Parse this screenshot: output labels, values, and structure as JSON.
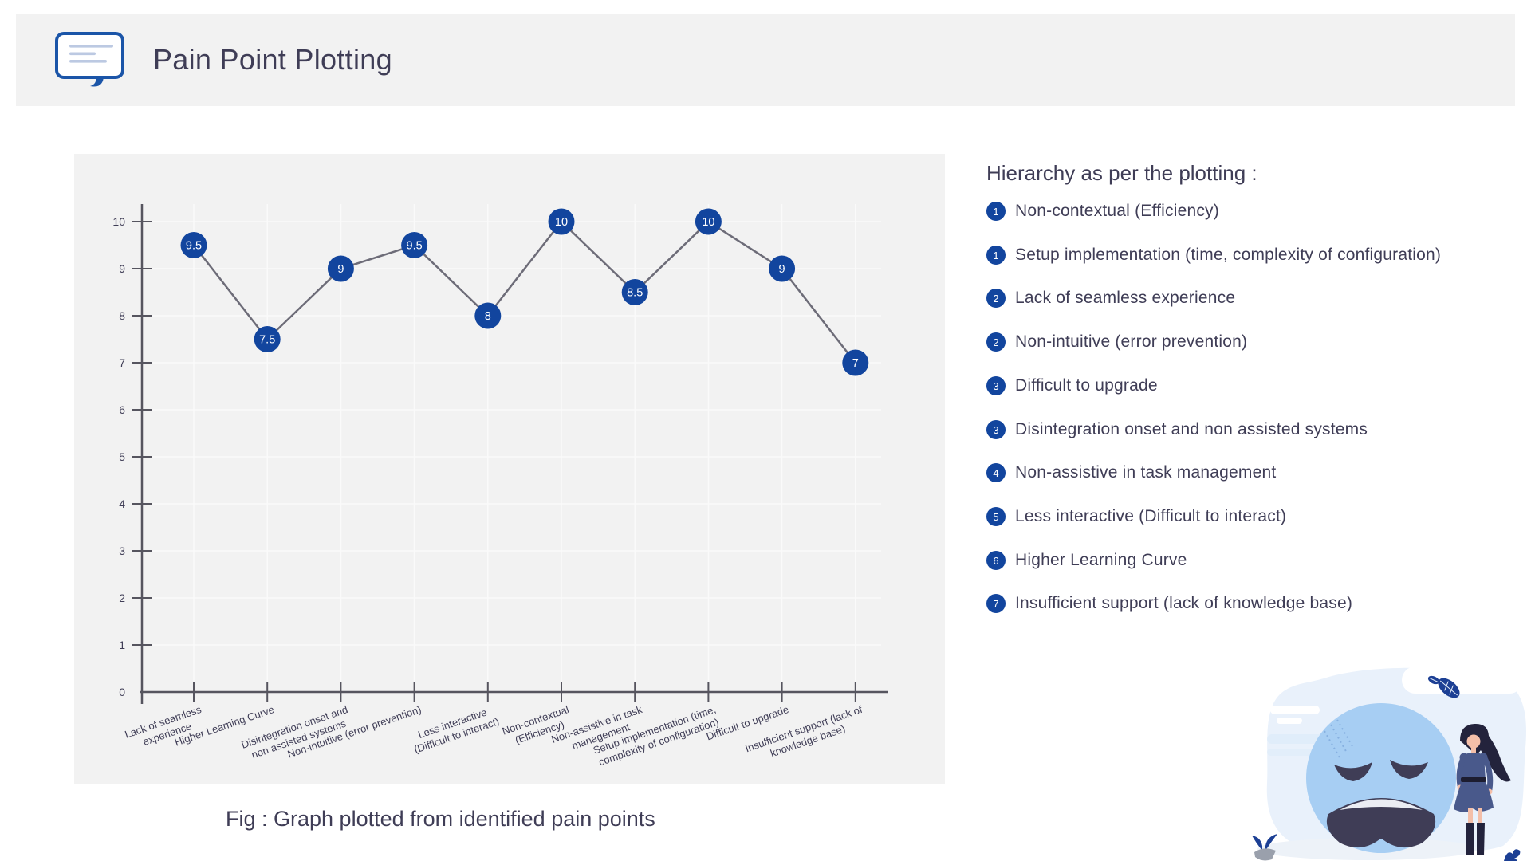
{
  "header": {
    "title": "Pain Point Plotting",
    "icon": "speech-bubble-icon"
  },
  "caption": "Fig : Graph plotted from identified pain points",
  "hierarchy": {
    "title": "Hierarchy as per the plotting :",
    "items": [
      {
        "rank": "1",
        "label": "Non-contextual (Efficiency)"
      },
      {
        "rank": "1",
        "label": "Setup implementation (time, complexity of configuration)"
      },
      {
        "rank": "2",
        "label": "Lack of seamless experience"
      },
      {
        "rank": "2",
        "label": "Non-intuitive (error prevention)"
      },
      {
        "rank": "3",
        "label": "Difficult to upgrade"
      },
      {
        "rank": "3",
        "label": "Disintegration onset and non assisted systems"
      },
      {
        "rank": "4",
        "label": "Non-assistive in task management"
      },
      {
        "rank": "5",
        "label": "Less interactive (Difficult to interact)"
      },
      {
        "rank": "6",
        "label": "Higher Learning Curve"
      },
      {
        "rank": "7",
        "label": "Insufficient support (lack of knowledge base)"
      }
    ]
  },
  "chart_data": {
    "type": "line",
    "title": "",
    "xlabel": "",
    "ylabel": "",
    "categories": [
      "Lack of seamless experience",
      "Higher Learning Curve",
      "Disintegration onset and non assisted systems",
      "Non-intuitive (error prevention)",
      "Less interactive (Difficult to interact)",
      "Non-contextual (Efficiency)",
      "Non-assistive in task management",
      "Setup implementation (time, complexity of configuration)",
      "Difficult to upgrade",
      "Insufficient support (lack of knowledge base)"
    ],
    "category_lines": [
      [
        "Lack of seamless",
        "experience"
      ],
      [
        "Higher Learning Curve"
      ],
      [
        "Disintegration onset and",
        "non assisted systems"
      ],
      [
        "Non-intuitive (error prevention)"
      ],
      [
        "Less interactive",
        "(Difficult to interact)"
      ],
      [
        "Non-contextual",
        "(Efficiency)"
      ],
      [
        "Non-assistive in task",
        "management"
      ],
      [
        "Setup implementation (time,",
        "complexity of configuration)"
      ],
      [
        "Difficult to upgrade"
      ],
      [
        "Insufficient support (lack of",
        "knowledge base)"
      ]
    ],
    "values": [
      9.5,
      7.5,
      9,
      9.5,
      8,
      10,
      8.5,
      10,
      9,
      7
    ],
    "point_labels": [
      "9.5",
      "7.5",
      "9",
      "9.5",
      "8",
      "10",
      "8.5",
      "10",
      "9",
      "7"
    ],
    "yticks": [
      0,
      1,
      2,
      3,
      4,
      5,
      6,
      7,
      8,
      9,
      10
    ],
    "ylim": [
      0,
      10
    ],
    "grid": true,
    "legend": "none"
  },
  "colors": {
    "accent_blue": "#12459e",
    "text_dark": "#3f3d56",
    "panel_bg": "#f2f2f2",
    "line_gray": "#6d6c78",
    "axis_gray": "#56555f",
    "grid": "#fafafa",
    "point_label_text": "#ffffff",
    "illustration_face_blue": "#a7cef3"
  },
  "illustration": {
    "name": "sad-face-with-woman-illustration"
  }
}
